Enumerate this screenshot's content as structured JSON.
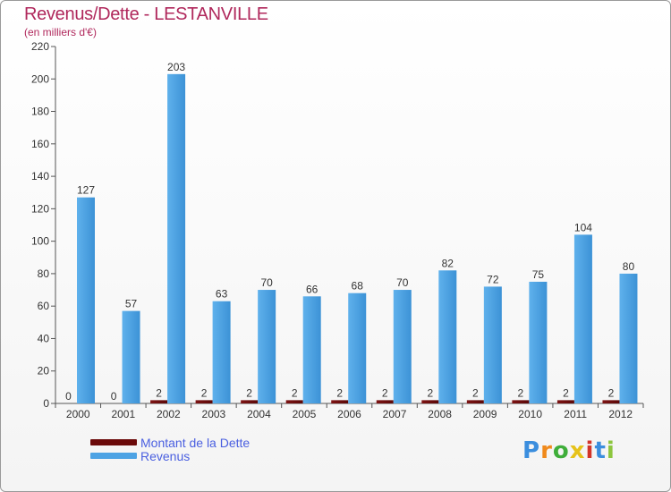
{
  "header": {
    "title": "Revenus/Dette - LESTANVILLE",
    "subtitle": "(en milliers d'€)"
  },
  "logo": {
    "text": "Proxiti",
    "letters": [
      "P",
      "r",
      "o",
      "x",
      "i",
      "t",
      "i"
    ],
    "colors": [
      "#3b8ede",
      "#f08a1c",
      "#3fae3a",
      "#e6c21a",
      "#d2342a",
      "#3b8ede",
      "#8dc63f"
    ]
  },
  "legend": [
    {
      "label": "Montant de la Dette",
      "color": "#6b0a0a"
    },
    {
      "label": "Revenus",
      "color": "#4da3e4"
    }
  ],
  "chart_data": {
    "type": "bar",
    "title": "Revenus/Dette - LESTANVILLE",
    "subtitle": "(en milliers d'€)",
    "categories": [
      "2000",
      "2001",
      "2002",
      "2003",
      "2004",
      "2005",
      "2006",
      "2007",
      "2008",
      "2009",
      "2010",
      "2011",
      "2012"
    ],
    "series": [
      {
        "name": "Montant de la Dette",
        "color": "#6b0a0a",
        "values": [
          0,
          0,
          2,
          2,
          2,
          2,
          2,
          2,
          2,
          2,
          2,
          2,
          2
        ]
      },
      {
        "name": "Revenus",
        "color": "#4da3e4",
        "values": [
          127,
          57,
          203,
          63,
          70,
          66,
          68,
          70,
          82,
          72,
          75,
          104,
          80
        ]
      }
    ],
    "ylim": [
      0,
      220
    ],
    "yticks": [
      0,
      20,
      40,
      60,
      80,
      100,
      120,
      140,
      160,
      180,
      200,
      220
    ],
    "grid": false,
    "legend_position": "bottom-left"
  }
}
